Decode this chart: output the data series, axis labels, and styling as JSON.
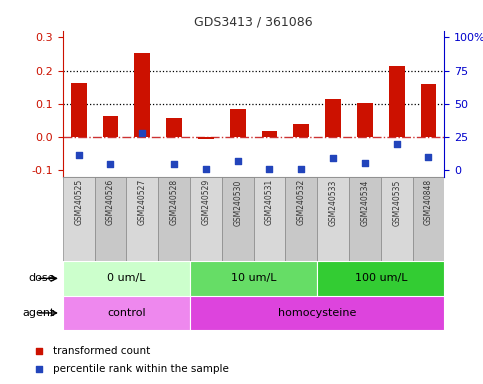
{
  "title": "GDS3413 / 361086",
  "samples": [
    "GSM240525",
    "GSM240526",
    "GSM240527",
    "GSM240528",
    "GSM240529",
    "GSM240530",
    "GSM240531",
    "GSM240532",
    "GSM240533",
    "GSM240534",
    "GSM240535",
    "GSM240848"
  ],
  "red_values": [
    0.162,
    0.062,
    0.252,
    0.057,
    -0.008,
    0.085,
    0.018,
    0.038,
    0.115,
    0.102,
    0.213,
    0.158
  ],
  "blue_values": [
    -0.055,
    -0.083,
    0.012,
    -0.083,
    -0.098,
    -0.073,
    -0.098,
    -0.098,
    -0.063,
    -0.078,
    -0.022,
    -0.06
  ],
  "ylim": [
    -0.12,
    0.32
  ],
  "yticks_left": [
    -0.1,
    0.0,
    0.1,
    0.2,
    0.3
  ],
  "yticks_right_labels": [
    "0",
    "25",
    "50",
    "75",
    "100%"
  ],
  "grid_lines": [
    0.1,
    0.2
  ],
  "dose_groups": [
    {
      "label": "0 um/L",
      "start": 0,
      "end": 4,
      "color": "#ccffcc"
    },
    {
      "label": "10 um/L",
      "start": 4,
      "end": 8,
      "color": "#66dd66"
    },
    {
      "label": "100 um/L",
      "start": 8,
      "end": 12,
      "color": "#33cc33"
    }
  ],
  "agent_groups": [
    {
      "label": "control",
      "start": 0,
      "end": 4,
      "color": "#ee88ee"
    },
    {
      "label": "homocysteine",
      "start": 4,
      "end": 12,
      "color": "#dd44dd"
    }
  ],
  "red_color": "#cc1100",
  "blue_color": "#2244bb",
  "zero_line_color": "#cc3333",
  "grid_color": "#000000",
  "background_color": "#ffffff",
  "plot_bg_color": "#ffffff",
  "tick_color_left": "#cc1100",
  "tick_color_right": "#0000cc",
  "bar_width": 0.5,
  "sample_box_color_odd": "#d8d8d8",
  "sample_box_color_even": "#c8c8c8",
  "legend_items": [
    {
      "label": "transformed count",
      "color": "#cc1100"
    },
    {
      "label": "percentile rank within the sample",
      "color": "#2244bb"
    }
  ]
}
